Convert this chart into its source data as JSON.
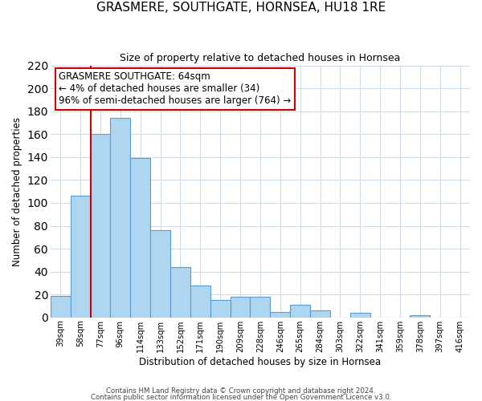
{
  "title": "GRASMERE, SOUTHGATE, HORNSEA, HU18 1RE",
  "subtitle": "Size of property relative to detached houses in Hornsea",
  "xlabel": "Distribution of detached houses by size in Hornsea",
  "ylabel": "Number of detached properties",
  "categories": [
    "39sqm",
    "58sqm",
    "77sqm",
    "96sqm",
    "114sqm",
    "133sqm",
    "152sqm",
    "171sqm",
    "190sqm",
    "209sqm",
    "228sqm",
    "246sqm",
    "265sqm",
    "284sqm",
    "303sqm",
    "322sqm",
    "341sqm",
    "359sqm",
    "378sqm",
    "397sqm",
    "416sqm"
  ],
  "values": [
    19,
    106,
    160,
    174,
    139,
    76,
    44,
    28,
    15,
    18,
    18,
    5,
    11,
    6,
    0,
    4,
    0,
    0,
    2,
    0,
    0
  ],
  "bar_color": "#aed6f1",
  "bar_edge_color": "#5b9bd5",
  "vline_x": 1.5,
  "vline_color": "#cc0000",
  "annotation_title": "GRASMERE SOUTHGATE: 64sqm",
  "annotation_line2": "← 4% of detached houses are smaller (34)",
  "annotation_line3": "96% of semi-detached houses are larger (764) →",
  "annotation_box_color": "#ffffff",
  "annotation_box_edge": "#cc0000",
  "ylim": [
    0,
    220
  ],
  "yticks": [
    0,
    20,
    40,
    60,
    80,
    100,
    120,
    140,
    160,
    180,
    200,
    220
  ],
  "footer1": "Contains HM Land Registry data © Crown copyright and database right 2024.",
  "footer2": "Contains public sector information licensed under the Open Government Licence v3.0.",
  "background_color": "#ffffff",
  "grid_color": "#d0dde8"
}
